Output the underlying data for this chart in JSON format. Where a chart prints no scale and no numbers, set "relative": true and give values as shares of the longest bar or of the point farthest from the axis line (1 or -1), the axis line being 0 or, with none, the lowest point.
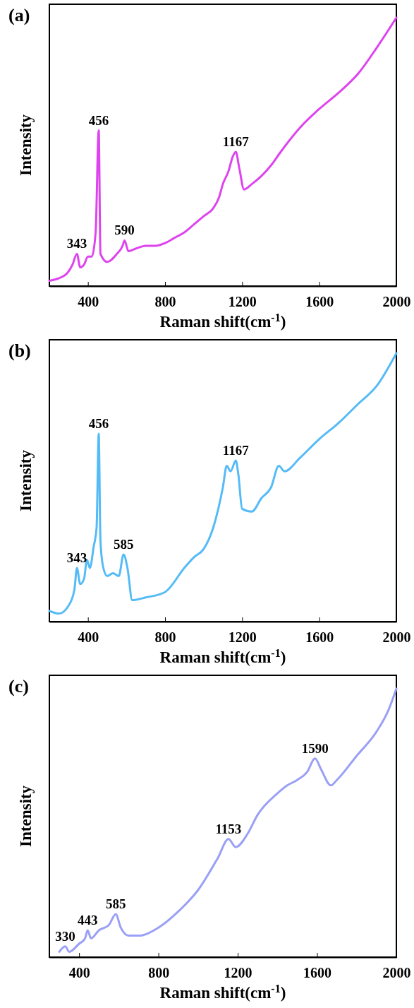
{
  "chart_data": [
    {
      "type": "line",
      "title": "(a)",
      "xlabel": "Raman shift(cm$^{-1}$)",
      "ylabel": "Intensity",
      "relative": true,
      "tick_labels": "x",
      "xlim": [
        200,
        2000
      ],
      "xticks": [
        400,
        800,
        1200,
        1600,
        2000
      ],
      "x": [
        200,
        280,
        320,
        343,
        360,
        380,
        400,
        420,
        440,
        456,
        465,
        500,
        550,
        580,
        590,
        610,
        650,
        700,
        750,
        800,
        850,
        900,
        950,
        1000,
        1050,
        1080,
        1100,
        1130,
        1150,
        1167,
        1185,
        1210,
        1250,
        1300,
        1350,
        1400,
        1500,
        1600,
        1700,
        1800,
        1900,
        2000
      ],
      "series": [
        {
          "color": "#dd44ee",
          "values": [
            0.02,
            0.04,
            0.08,
            0.12,
            0.07,
            0.08,
            0.11,
            0.11,
            0.2,
            0.58,
            0.12,
            0.09,
            0.12,
            0.15,
            0.17,
            0.13,
            0.14,
            0.15,
            0.15,
            0.16,
            0.18,
            0.2,
            0.23,
            0.26,
            0.29,
            0.33,
            0.38,
            0.43,
            0.48,
            0.5,
            0.44,
            0.36,
            0.38,
            0.41,
            0.45,
            0.5,
            0.59,
            0.66,
            0.72,
            0.79,
            0.89,
            1.0
          ]
        }
      ],
      "annotations": [
        {
          "text": "343",
          "x": 343,
          "y": 0.12
        },
        {
          "text": "456",
          "x": 456,
          "y": 0.58
        },
        {
          "text": "590",
          "x": 590,
          "y": 0.17
        },
        {
          "text": "1167",
          "x": 1167,
          "y": 0.5
        }
      ]
    },
    {
      "type": "line",
      "title": "(b)",
      "xlabel": "Raman shift(cm$^{-1}$)",
      "ylabel": "Intensity",
      "relative": true,
      "tick_labels": "x",
      "xlim": [
        200,
        2000
      ],
      "xticks": [
        400,
        800,
        1200,
        1600,
        2000
      ],
      "x": [
        200,
        250,
        300,
        330,
        343,
        360,
        380,
        395,
        410,
        430,
        445,
        456,
        465,
        480,
        500,
        530,
        560,
        585,
        605,
        630,
        700,
        800,
        900,
        950,
        1000,
        1050,
        1100,
        1120,
        1140,
        1167,
        1180,
        1200,
        1250,
        1300,
        1350,
        1390,
        1420,
        1500,
        1600,
        1700,
        1800,
        1900,
        2000
      ],
      "series": [
        {
          "color": "#55bbf7",
          "values": [
            0.04,
            0.03,
            0.06,
            0.12,
            0.2,
            0.14,
            0.16,
            0.23,
            0.2,
            0.28,
            0.35,
            0.7,
            0.3,
            0.2,
            0.17,
            0.18,
            0.17,
            0.25,
            0.2,
            0.08,
            0.09,
            0.11,
            0.2,
            0.24,
            0.27,
            0.35,
            0.5,
            0.58,
            0.56,
            0.6,
            0.55,
            0.42,
            0.41,
            0.46,
            0.5,
            0.58,
            0.56,
            0.61,
            0.68,
            0.74,
            0.81,
            0.88,
            1.0
          ]
        }
      ],
      "annotations": [
        {
          "text": "343",
          "x": 343,
          "y": 0.2
        },
        {
          "text": "456",
          "x": 456,
          "y": 0.7
        },
        {
          "text": "585",
          "x": 585,
          "y": 0.25
        },
        {
          "text": "1167",
          "x": 1167,
          "y": 0.6
        }
      ]
    },
    {
      "type": "line",
      "title": "(c)",
      "xlabel": "Raman shift(cm$^{-1}$)",
      "ylabel": "Intensity",
      "relative": true,
      "tick_labels": "x",
      "xlim": [
        250,
        2000
      ],
      "xticks": [
        400,
        800,
        1200,
        1600,
        2000
      ],
      "x": [
        300,
        330,
        350,
        400,
        430,
        443,
        460,
        500,
        550,
        585,
        610,
        650,
        700,
        800,
        900,
        1000,
        1100,
        1153,
        1190,
        1250,
        1300,
        1400,
        1450,
        1500,
        1550,
        1590,
        1620,
        1670,
        1700,
        1800,
        1900,
        1960,
        2000
      ],
      "series": [
        {
          "color": "#9aa0f5",
          "values": [
            0.02,
            0.04,
            0.02,
            0.05,
            0.07,
            0.1,
            0.07,
            0.1,
            0.12,
            0.16,
            0.11,
            0.08,
            0.08,
            0.11,
            0.17,
            0.25,
            0.37,
            0.44,
            0.41,
            0.46,
            0.53,
            0.61,
            0.64,
            0.66,
            0.69,
            0.74,
            0.7,
            0.64,
            0.66,
            0.75,
            0.84,
            0.92,
            1.0
          ]
        }
      ],
      "annotations": [
        {
          "text": "330",
          "x": 330,
          "y": 0.04
        },
        {
          "text": "443",
          "x": 443,
          "y": 0.1
        },
        {
          "text": "585",
          "x": 585,
          "y": 0.16
        },
        {
          "text": "1153",
          "x": 1153,
          "y": 0.44
        },
        {
          "text": "1590",
          "x": 1590,
          "y": 0.74
        }
      ]
    }
  ]
}
